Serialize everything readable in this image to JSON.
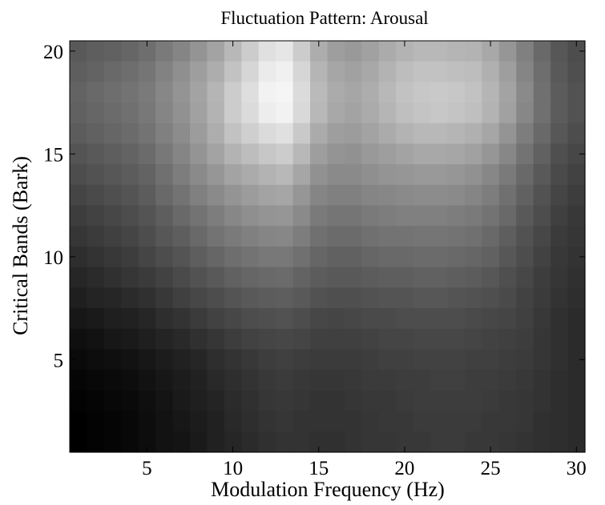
{
  "chart_data": {
    "type": "heatmap",
    "title": "Fluctuation Pattern: Arousal",
    "xlabel": "Modulation Frequency (Hz)",
    "ylabel": "Critical Bands (Bark)",
    "x_ticks": [
      "5",
      "10",
      "15",
      "20",
      "25",
      "30"
    ],
    "y_ticks": [
      "5",
      "10",
      "15",
      "20"
    ],
    "xlim": [
      0.5,
      30.5
    ],
    "ylim": [
      0.5,
      20.5
    ],
    "colormap": "gray",
    "x": [
      1,
      2,
      3,
      4,
      5,
      6,
      7,
      8,
      9,
      10,
      11,
      12,
      13,
      14,
      15,
      16,
      17,
      18,
      19,
      20,
      21,
      22,
      23,
      24,
      25,
      26,
      27,
      28,
      29,
      30
    ],
    "y": [
      20,
      19,
      18,
      17,
      16,
      15,
      14,
      13,
      12,
      11,
      10,
      9,
      8,
      7,
      6,
      5,
      4,
      3,
      2,
      1
    ],
    "values": [
      [
        0.35,
        0.37,
        0.38,
        0.4,
        0.43,
        0.48,
        0.52,
        0.58,
        0.64,
        0.72,
        0.8,
        0.88,
        0.9,
        0.8,
        0.68,
        0.62,
        0.6,
        0.63,
        0.67,
        0.7,
        0.72,
        0.72,
        0.71,
        0.7,
        0.66,
        0.59,
        0.5,
        0.41,
        0.34,
        0.3
      ],
      [
        0.37,
        0.39,
        0.41,
        0.43,
        0.46,
        0.51,
        0.56,
        0.62,
        0.68,
        0.76,
        0.84,
        0.92,
        0.94,
        0.84,
        0.71,
        0.65,
        0.63,
        0.66,
        0.7,
        0.74,
        0.76,
        0.76,
        0.75,
        0.74,
        0.69,
        0.62,
        0.52,
        0.43,
        0.35,
        0.31
      ],
      [
        0.39,
        0.41,
        0.43,
        0.45,
        0.48,
        0.53,
        0.58,
        0.64,
        0.71,
        0.8,
        0.87,
        0.95,
        0.96,
        0.86,
        0.73,
        0.67,
        0.65,
        0.68,
        0.72,
        0.76,
        0.78,
        0.79,
        0.78,
        0.76,
        0.71,
        0.64,
        0.54,
        0.44,
        0.36,
        0.32
      ],
      [
        0.38,
        0.4,
        0.42,
        0.44,
        0.47,
        0.52,
        0.57,
        0.63,
        0.7,
        0.8,
        0.86,
        0.93,
        0.95,
        0.85,
        0.72,
        0.66,
        0.64,
        0.67,
        0.71,
        0.75,
        0.77,
        0.78,
        0.77,
        0.75,
        0.7,
        0.63,
        0.53,
        0.44,
        0.36,
        0.32
      ],
      [
        0.36,
        0.38,
        0.4,
        0.42,
        0.45,
        0.5,
        0.55,
        0.61,
        0.68,
        0.76,
        0.81,
        0.86,
        0.88,
        0.79,
        0.67,
        0.62,
        0.61,
        0.64,
        0.67,
        0.7,
        0.72,
        0.72,
        0.71,
        0.69,
        0.65,
        0.58,
        0.49,
        0.41,
        0.34,
        0.3
      ],
      [
        0.33,
        0.35,
        0.37,
        0.39,
        0.42,
        0.47,
        0.52,
        0.58,
        0.64,
        0.7,
        0.74,
        0.78,
        0.8,
        0.72,
        0.62,
        0.58,
        0.57,
        0.6,
        0.62,
        0.64,
        0.66,
        0.66,
        0.65,
        0.63,
        0.59,
        0.53,
        0.45,
        0.38,
        0.31,
        0.28
      ],
      [
        0.3,
        0.32,
        0.34,
        0.36,
        0.39,
        0.44,
        0.49,
        0.54,
        0.59,
        0.64,
        0.67,
        0.7,
        0.72,
        0.65,
        0.57,
        0.54,
        0.54,
        0.56,
        0.58,
        0.59,
        0.6,
        0.6,
        0.59,
        0.57,
        0.53,
        0.48,
        0.41,
        0.35,
        0.29,
        0.26
      ],
      [
        0.27,
        0.29,
        0.31,
        0.33,
        0.36,
        0.41,
        0.45,
        0.5,
        0.54,
        0.58,
        0.61,
        0.64,
        0.65,
        0.59,
        0.52,
        0.5,
        0.5,
        0.52,
        0.53,
        0.54,
        0.55,
        0.55,
        0.54,
        0.52,
        0.49,
        0.44,
        0.38,
        0.32,
        0.27,
        0.24
      ],
      [
        0.24,
        0.26,
        0.28,
        0.3,
        0.33,
        0.37,
        0.41,
        0.45,
        0.49,
        0.53,
        0.56,
        0.58,
        0.59,
        0.54,
        0.48,
        0.46,
        0.46,
        0.48,
        0.49,
        0.5,
        0.5,
        0.5,
        0.49,
        0.48,
        0.45,
        0.41,
        0.35,
        0.3,
        0.25,
        0.22
      ],
      [
        0.21,
        0.23,
        0.25,
        0.27,
        0.3,
        0.34,
        0.37,
        0.41,
        0.45,
        0.48,
        0.5,
        0.52,
        0.53,
        0.49,
        0.44,
        0.42,
        0.42,
        0.44,
        0.45,
        0.45,
        0.46,
        0.46,
        0.45,
        0.44,
        0.41,
        0.37,
        0.32,
        0.28,
        0.23,
        0.21
      ],
      [
        0.18,
        0.2,
        0.22,
        0.24,
        0.27,
        0.3,
        0.33,
        0.37,
        0.4,
        0.43,
        0.45,
        0.47,
        0.47,
        0.44,
        0.4,
        0.38,
        0.38,
        0.4,
        0.41,
        0.41,
        0.42,
        0.42,
        0.41,
        0.4,
        0.38,
        0.34,
        0.3,
        0.26,
        0.22,
        0.2
      ],
      [
        0.15,
        0.17,
        0.19,
        0.21,
        0.23,
        0.26,
        0.29,
        0.32,
        0.35,
        0.38,
        0.4,
        0.41,
        0.42,
        0.39,
        0.36,
        0.35,
        0.35,
        0.36,
        0.37,
        0.37,
        0.38,
        0.38,
        0.37,
        0.36,
        0.34,
        0.31,
        0.28,
        0.24,
        0.21,
        0.19
      ],
      [
        0.12,
        0.14,
        0.15,
        0.17,
        0.19,
        0.22,
        0.25,
        0.28,
        0.3,
        0.33,
        0.35,
        0.36,
        0.37,
        0.35,
        0.32,
        0.31,
        0.31,
        0.32,
        0.33,
        0.33,
        0.34,
        0.34,
        0.33,
        0.32,
        0.31,
        0.29,
        0.26,
        0.23,
        0.2,
        0.18
      ],
      [
        0.09,
        0.1,
        0.12,
        0.13,
        0.15,
        0.18,
        0.2,
        0.23,
        0.26,
        0.28,
        0.3,
        0.31,
        0.32,
        0.3,
        0.28,
        0.27,
        0.28,
        0.29,
        0.29,
        0.3,
        0.3,
        0.3,
        0.3,
        0.29,
        0.28,
        0.27,
        0.25,
        0.22,
        0.19,
        0.17
      ],
      [
        0.06,
        0.07,
        0.09,
        0.1,
        0.12,
        0.14,
        0.16,
        0.19,
        0.21,
        0.24,
        0.26,
        0.27,
        0.28,
        0.27,
        0.25,
        0.25,
        0.25,
        0.26,
        0.27,
        0.27,
        0.28,
        0.28,
        0.28,
        0.27,
        0.26,
        0.25,
        0.24,
        0.21,
        0.19,
        0.17
      ],
      [
        0.04,
        0.05,
        0.06,
        0.07,
        0.09,
        0.11,
        0.13,
        0.15,
        0.18,
        0.2,
        0.22,
        0.24,
        0.25,
        0.24,
        0.23,
        0.23,
        0.23,
        0.24,
        0.25,
        0.25,
        0.26,
        0.26,
        0.26,
        0.25,
        0.25,
        0.24,
        0.23,
        0.21,
        0.19,
        0.17
      ],
      [
        0.02,
        0.03,
        0.04,
        0.05,
        0.07,
        0.09,
        0.11,
        0.13,
        0.16,
        0.18,
        0.2,
        0.22,
        0.23,
        0.22,
        0.21,
        0.21,
        0.22,
        0.23,
        0.23,
        0.24,
        0.24,
        0.25,
        0.25,
        0.24,
        0.24,
        0.23,
        0.22,
        0.2,
        0.18,
        0.17
      ],
      [
        0.01,
        0.02,
        0.03,
        0.04,
        0.06,
        0.08,
        0.1,
        0.12,
        0.14,
        0.17,
        0.19,
        0.21,
        0.22,
        0.21,
        0.2,
        0.2,
        0.21,
        0.22,
        0.22,
        0.23,
        0.24,
        0.24,
        0.24,
        0.24,
        0.23,
        0.22,
        0.21,
        0.2,
        0.18,
        0.17
      ],
      [
        0.0,
        0.01,
        0.02,
        0.03,
        0.05,
        0.07,
        0.09,
        0.11,
        0.13,
        0.16,
        0.18,
        0.2,
        0.21,
        0.2,
        0.2,
        0.2,
        0.2,
        0.21,
        0.22,
        0.22,
        0.23,
        0.23,
        0.23,
        0.23,
        0.22,
        0.22,
        0.21,
        0.19,
        0.18,
        0.17
      ],
      [
        0.0,
        0.01,
        0.02,
        0.03,
        0.05,
        0.07,
        0.08,
        0.1,
        0.13,
        0.15,
        0.17,
        0.19,
        0.2,
        0.2,
        0.19,
        0.19,
        0.2,
        0.21,
        0.21,
        0.22,
        0.22,
        0.23,
        0.23,
        0.22,
        0.22,
        0.21,
        0.2,
        0.19,
        0.18,
        0.17
      ]
    ]
  }
}
